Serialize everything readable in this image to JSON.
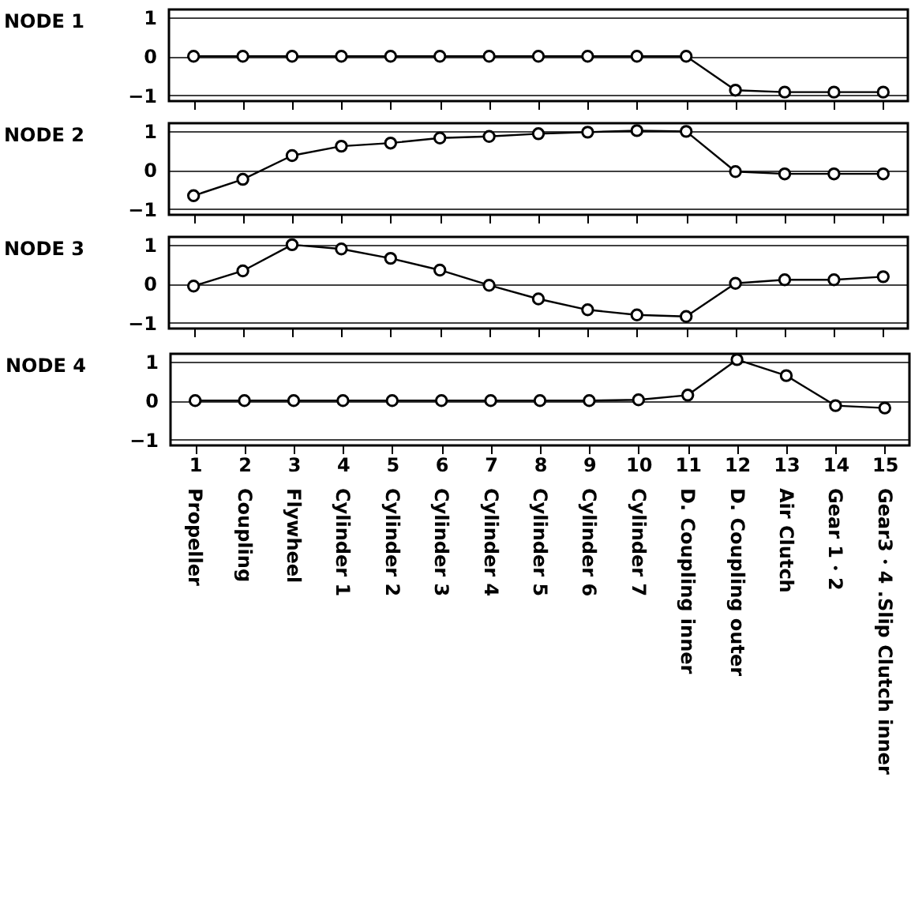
{
  "chart_data": [
    {
      "type": "line",
      "ylabel": "NODE 1",
      "x": [
        1,
        2,
        3,
        4,
        5,
        6,
        7,
        8,
        9,
        10,
        11,
        12,
        13,
        14,
        15
      ],
      "xlim": [
        0.5,
        15.5
      ],
      "ylim": [
        -1.15,
        1.2
      ],
      "yticks": [
        -1,
        0,
        1
      ],
      "grid": "y",
      "marker": "circle",
      "line_style": "solid",
      "tick_labels": "y",
      "series": [
        {
          "color": "#000000",
          "values": [
            0,
            0,
            0,
            0,
            0,
            0,
            0,
            0,
            0,
            0,
            0,
            -0.87,
            -0.92,
            -0.92,
            -0.92
          ]
        }
      ]
    },
    {
      "type": "line",
      "ylabel": "NODE 2",
      "x": [
        1,
        2,
        3,
        4,
        5,
        6,
        7,
        8,
        9,
        10,
        11,
        12,
        13,
        14,
        15
      ],
      "xlim": [
        0.5,
        15.5
      ],
      "ylim": [
        -1.15,
        1.2
      ],
      "yticks": [
        -1,
        0,
        1
      ],
      "grid": "y",
      "marker": "circle",
      "line_style": "solid",
      "tick_labels": "y",
      "series": [
        {
          "color": "#000000",
          "values": [
            -0.66,
            -0.24,
            0.37,
            0.61,
            0.69,
            0.82,
            0.86,
            0.93,
            0.97,
            1.01,
            0.99,
            -0.04,
            -0.1,
            -0.1,
            -0.1
          ]
        }
      ]
    },
    {
      "type": "line",
      "ylabel": "NODE 3",
      "x": [
        1,
        2,
        3,
        4,
        5,
        6,
        7,
        8,
        9,
        10,
        11,
        12,
        13,
        14,
        15
      ],
      "xlim": [
        0.5,
        15.5
      ],
      "ylim": [
        -1.15,
        1.2
      ],
      "yticks": [
        -1,
        0,
        1
      ],
      "grid": "y",
      "marker": "circle",
      "line_style": "solid",
      "tick_labels": "y",
      "series": [
        {
          "color": "#000000",
          "values": [
            -0.06,
            0.33,
            1.0,
            0.89,
            0.65,
            0.35,
            -0.04,
            -0.39,
            -0.67,
            -0.8,
            -0.84,
            0.01,
            0.1,
            0.1,
            0.18
          ]
        }
      ]
    },
    {
      "type": "line",
      "ylabel": "NODE 4",
      "x": [
        1,
        2,
        3,
        4,
        5,
        6,
        7,
        8,
        9,
        10,
        11,
        12,
        13,
        14,
        15
      ],
      "xlim": [
        0.5,
        15.5
      ],
      "xticks": [
        1,
        2,
        3,
        4,
        5,
        6,
        7,
        8,
        9,
        10,
        11,
        12,
        13,
        14,
        15
      ],
      "ylim": [
        -1.15,
        1.2
      ],
      "yticks": [
        -1,
        0,
        1
      ],
      "grid": "y",
      "marker": "circle",
      "line_style": "solid",
      "series": [
        {
          "color": "#000000",
          "values": [
            0,
            0,
            0,
            0,
            0,
            0,
            0,
            0,
            0,
            0.02,
            0.14,
            1.05,
            0.64,
            -0.13,
            -0.19
          ]
        }
      ],
      "annotations": [
        "Propeller",
        "Coupling",
        "Flywheel",
        "Cylinder 1",
        "Cylinder 2",
        "Cylinder 3",
        "Cylinder 4",
        "Cylinder 5",
        "Cylinder 6",
        "Cylinder 7",
        "D. Coupling inner",
        "D. Coupling outer",
        "Air Clutch",
        "Gear 1・2",
        "Gear3・4 .Slip Clutch inner"
      ]
    }
  ]
}
